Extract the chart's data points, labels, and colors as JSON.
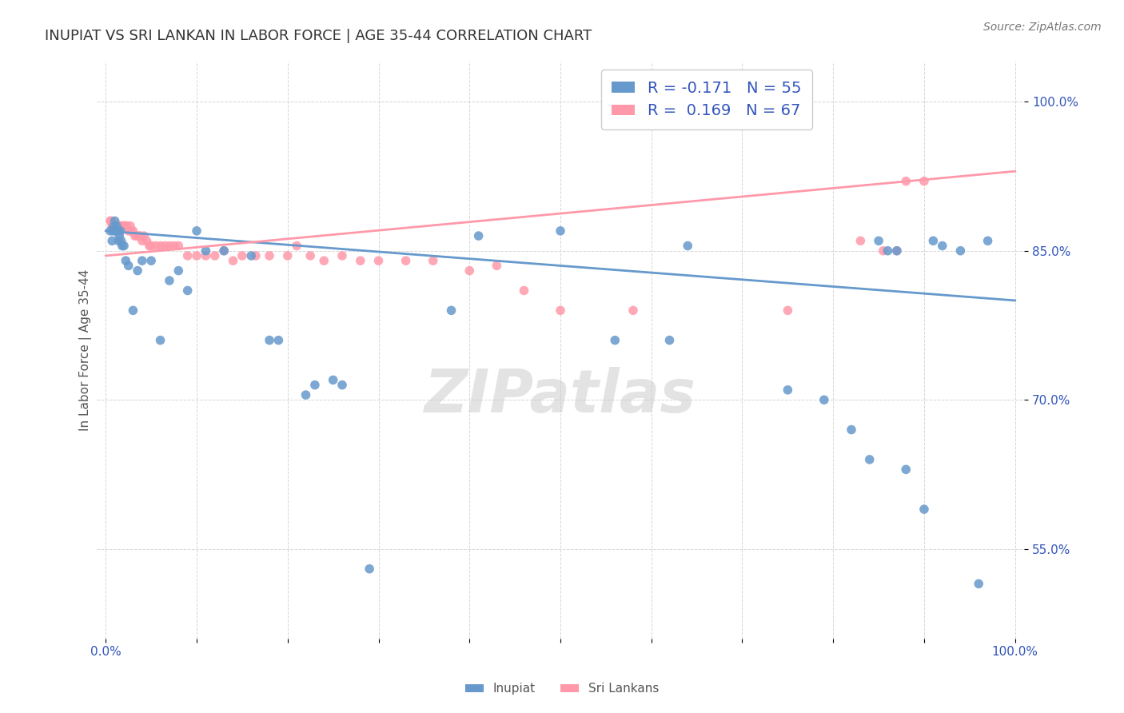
{
  "title": "INUPIAT VS SRI LANKAN IN LABOR FORCE | AGE 35-44 CORRELATION CHART",
  "source": "Source: ZipAtlas.com",
  "ylabel": "In Labor Force | Age 35-44",
  "watermark": "ZIPatlas",
  "xlim": [
    -0.01,
    1.01
  ],
  "ylim": [
    0.46,
    1.04
  ],
  "x_tick_positions": [
    0.0,
    0.1,
    0.2,
    0.3,
    0.4,
    0.5,
    0.6,
    0.7,
    0.8,
    0.9,
    1.0
  ],
  "x_tick_labels": [
    "0.0%",
    "",
    "",
    "",
    "",
    "",
    "",
    "",
    "",
    "",
    "100.0%"
  ],
  "y_tick_positions": [
    0.55,
    0.7,
    0.85,
    1.0
  ],
  "y_tick_labels": [
    "55.0%",
    "70.0%",
    "85.0%",
    "100.0%"
  ],
  "inupiat_color": "#6699cc",
  "srilankan_color": "#ff99aa",
  "inupiat_R": -0.171,
  "inupiat_N": 55,
  "srilankan_R": 0.169,
  "srilankan_N": 67,
  "legend_text_color": "#3355bb",
  "inupiat_x": [
    0.005,
    0.007,
    0.008,
    0.009,
    0.01,
    0.011,
    0.012,
    0.013,
    0.014,
    0.015,
    0.016,
    0.017,
    0.018,
    0.02,
    0.022,
    0.025,
    0.03,
    0.035,
    0.04,
    0.05,
    0.06,
    0.07,
    0.08,
    0.09,
    0.1,
    0.11,
    0.13,
    0.16,
    0.18,
    0.19,
    0.22,
    0.23,
    0.25,
    0.26,
    0.29,
    0.38,
    0.41,
    0.5,
    0.56,
    0.62,
    0.64,
    0.75,
    0.79,
    0.82,
    0.84,
    0.85,
    0.86,
    0.87,
    0.88,
    0.9,
    0.91,
    0.92,
    0.94,
    0.96,
    0.97
  ],
  "inupiat_y": [
    0.87,
    0.86,
    0.87,
    0.875,
    0.88,
    0.87,
    0.875,
    0.87,
    0.86,
    0.865,
    0.87,
    0.86,
    0.855,
    0.855,
    0.84,
    0.835,
    0.79,
    0.83,
    0.84,
    0.84,
    0.76,
    0.82,
    0.83,
    0.81,
    0.87,
    0.85,
    0.85,
    0.845,
    0.76,
    0.76,
    0.705,
    0.715,
    0.72,
    0.715,
    0.53,
    0.79,
    0.865,
    0.87,
    0.76,
    0.76,
    0.855,
    0.71,
    0.7,
    0.67,
    0.64,
    0.86,
    0.85,
    0.85,
    0.63,
    0.59,
    0.86,
    0.855,
    0.85,
    0.515,
    0.86
  ],
  "srilankan_x": [
    0.005,
    0.006,
    0.007,
    0.008,
    0.009,
    0.01,
    0.011,
    0.012,
    0.013,
    0.014,
    0.015,
    0.016,
    0.017,
    0.018,
    0.019,
    0.02,
    0.021,
    0.022,
    0.023,
    0.025,
    0.027,
    0.028,
    0.03,
    0.032,
    0.034,
    0.036,
    0.038,
    0.04,
    0.042,
    0.045,
    0.048,
    0.05,
    0.055,
    0.06,
    0.065,
    0.07,
    0.075,
    0.08,
    0.09,
    0.1,
    0.11,
    0.12,
    0.13,
    0.14,
    0.15,
    0.165,
    0.18,
    0.2,
    0.21,
    0.225,
    0.24,
    0.26,
    0.28,
    0.3,
    0.33,
    0.36,
    0.4,
    0.43,
    0.46,
    0.5,
    0.58,
    0.75,
    0.83,
    0.855,
    0.87,
    0.88,
    0.9
  ],
  "srilankan_y": [
    0.88,
    0.88,
    0.875,
    0.875,
    0.875,
    0.875,
    0.875,
    0.875,
    0.875,
    0.875,
    0.875,
    0.875,
    0.875,
    0.875,
    0.875,
    0.875,
    0.875,
    0.875,
    0.875,
    0.87,
    0.875,
    0.87,
    0.87,
    0.865,
    0.865,
    0.865,
    0.865,
    0.86,
    0.865,
    0.86,
    0.855,
    0.855,
    0.855,
    0.855,
    0.855,
    0.855,
    0.855,
    0.855,
    0.845,
    0.845,
    0.845,
    0.845,
    0.85,
    0.84,
    0.845,
    0.845,
    0.845,
    0.845,
    0.855,
    0.845,
    0.84,
    0.845,
    0.84,
    0.84,
    0.84,
    0.84,
    0.83,
    0.835,
    0.81,
    0.79,
    0.79,
    0.79,
    0.86,
    0.85,
    0.85,
    0.92,
    0.92
  ],
  "inupiat_line_y0": 0.87,
  "inupiat_line_y1": 0.8,
  "srilankan_line_y0": 0.845,
  "srilankan_line_y1": 0.93,
  "background_color": "#ffffff",
  "grid_color": "#cccccc",
  "title_fontsize": 13,
  "label_fontsize": 11,
  "tick_fontsize": 11,
  "legend_fontsize": 14,
  "source_fontsize": 10
}
